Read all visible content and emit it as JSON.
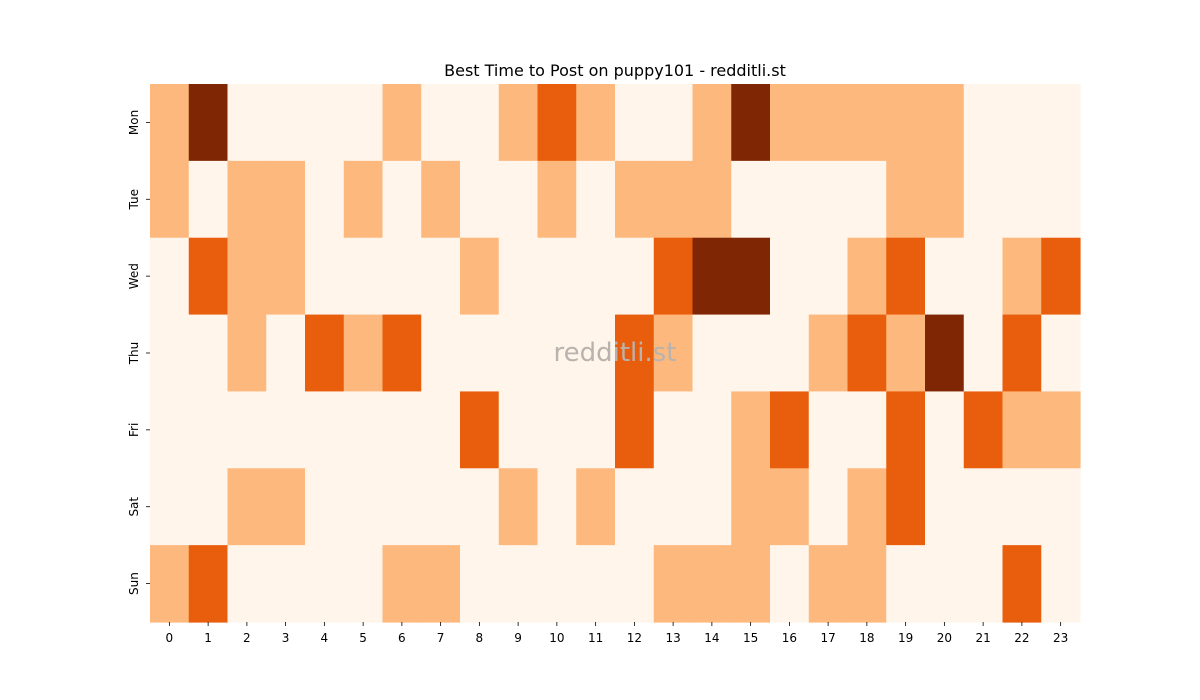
{
  "chart_data": {
    "type": "heatmap",
    "title": "Best Time to Post on puppy101 - redditli.st",
    "xlabel": "",
    "ylabel": "",
    "x": [
      "0",
      "1",
      "2",
      "3",
      "4",
      "5",
      "6",
      "7",
      "8",
      "9",
      "10",
      "11",
      "12",
      "13",
      "14",
      "15",
      "16",
      "17",
      "18",
      "19",
      "20",
      "21",
      "22",
      "23"
    ],
    "y": [
      "Mon",
      "Tue",
      "Wed",
      "Thu",
      "Fri",
      "Sat",
      "Sun"
    ],
    "value_range": [
      0,
      3
    ],
    "colormap": "Oranges",
    "colorbar": false,
    "grid": false,
    "z": [
      [
        1,
        3,
        0,
        0,
        0,
        0,
        1,
        0,
        0,
        1,
        2,
        1,
        0,
        0,
        1,
        3,
        1,
        1,
        1,
        1,
        1,
        0,
        0,
        0
      ],
      [
        1,
        0,
        1,
        1,
        0,
        1,
        0,
        1,
        0,
        0,
        1,
        0,
        1,
        1,
        1,
        0,
        0,
        0,
        0,
        1,
        1,
        0,
        0,
        0
      ],
      [
        0,
        2,
        1,
        1,
        0,
        0,
        0,
        0,
        1,
        0,
        0,
        0,
        0,
        2,
        3,
        3,
        0,
        0,
        1,
        2,
        0,
        0,
        1,
        2
      ],
      [
        0,
        0,
        1,
        0,
        2,
        1,
        2,
        0,
        0,
        0,
        0,
        0,
        2,
        1,
        0,
        0,
        0,
        1,
        2,
        1,
        3,
        0,
        2,
        0
      ],
      [
        0,
        0,
        0,
        0,
        0,
        0,
        0,
        0,
        2,
        0,
        0,
        0,
        2,
        0,
        0,
        1,
        2,
        0,
        0,
        2,
        0,
        2,
        1,
        1
      ],
      [
        0,
        0,
        1,
        1,
        0,
        0,
        0,
        0,
        0,
        1,
        0,
        1,
        0,
        0,
        0,
        1,
        1,
        0,
        1,
        2,
        0,
        0,
        0,
        0
      ],
      [
        1,
        2,
        0,
        0,
        0,
        0,
        1,
        1,
        0,
        0,
        0,
        0,
        0,
        1,
        1,
        1,
        0,
        1,
        1,
        0,
        0,
        0,
        2,
        0
      ]
    ],
    "colors": {
      "0": "#fff5eb",
      "1": "#fdb87d",
      "2": "#e95e0d",
      "3": "#7f2704"
    },
    "watermark": "redditli.st"
  }
}
